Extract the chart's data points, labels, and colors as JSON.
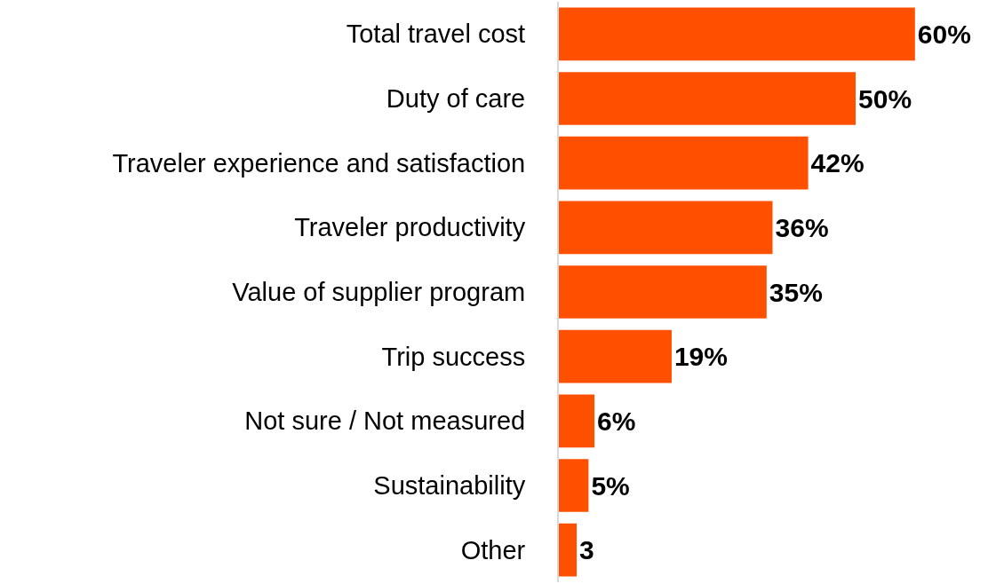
{
  "chart_data": {
    "type": "bar",
    "orientation": "horizontal",
    "categories": [
      "Total travel cost",
      "Duty of care",
      "Traveler experience and satisfaction",
      "Traveler productivity",
      "Value of supplier program",
      "Trip success",
      "Not sure / Not measured",
      "Sustainability",
      "Other"
    ],
    "values": [
      60,
      50,
      42,
      36,
      35,
      19,
      6,
      5,
      3
    ],
    "value_labels": [
      "60%",
      "50%",
      "42%",
      "36%",
      "35%",
      "19%",
      "6%",
      "5%",
      "3"
    ],
    "color": "#ff5000"
  }
}
